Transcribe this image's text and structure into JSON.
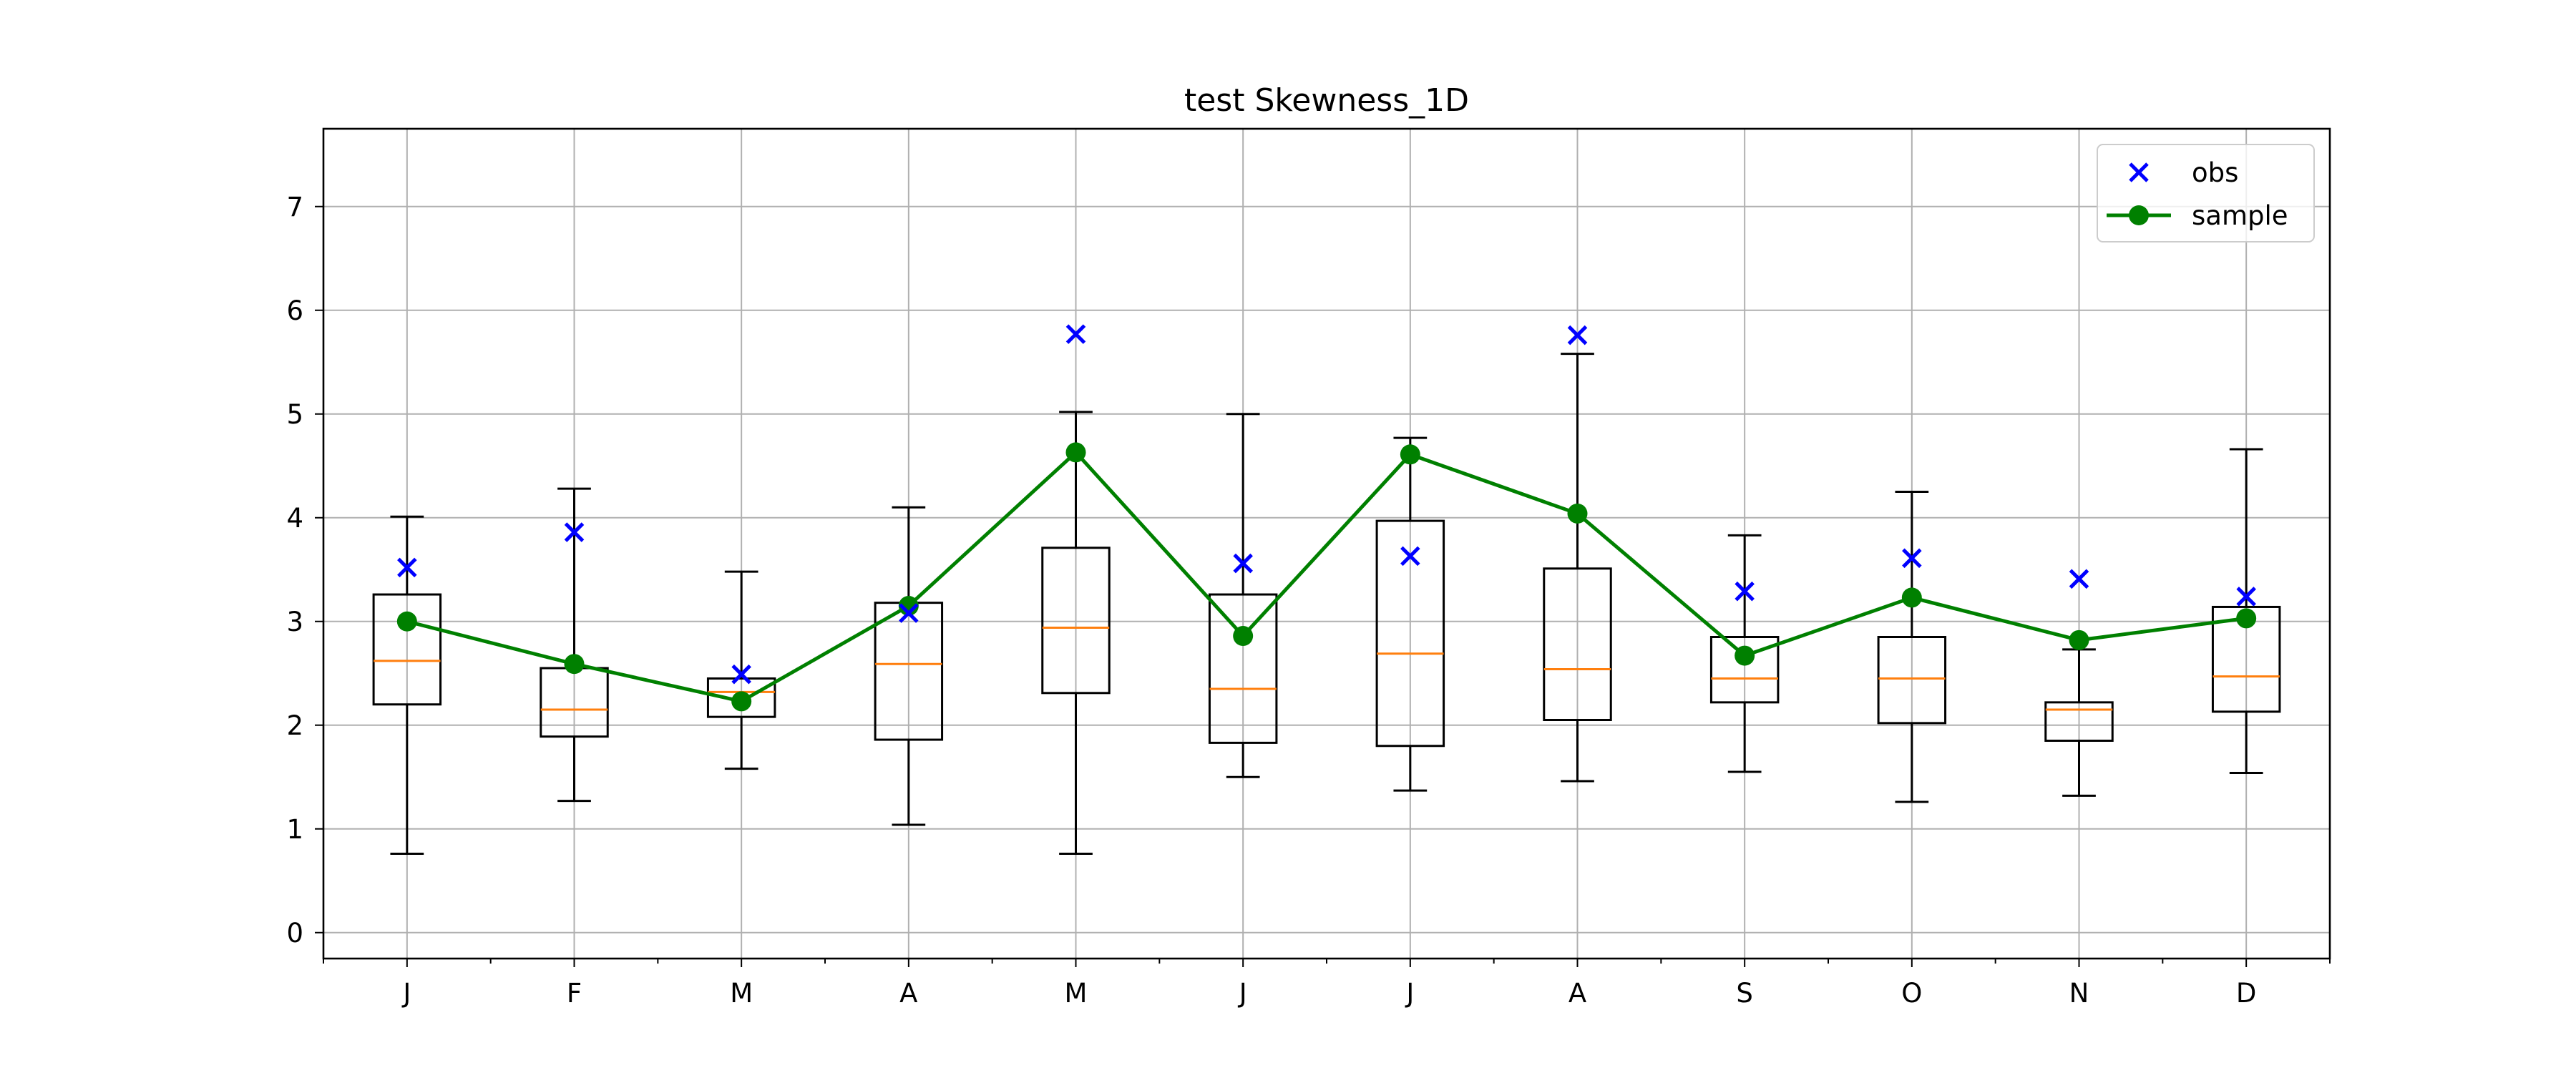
{
  "chart_data": {
    "type": "box",
    "title": "test Skewness_1D",
    "xlabel": "",
    "ylabel": "",
    "categories": [
      "J",
      "F",
      "M",
      "A",
      "M",
      "J",
      "J",
      "A",
      "S",
      "O",
      "N",
      "D"
    ],
    "ylim": [
      -0.25,
      7.75
    ],
    "yticks": [
      0,
      1,
      2,
      3,
      4,
      5,
      6,
      7
    ],
    "grid": true,
    "legend": {
      "placement": "top-right",
      "entries": [
        "obs",
        "sample"
      ]
    },
    "colors": {
      "box": "#000000",
      "median": "#ff7f0e",
      "obs": "#0000ff",
      "sample": "#008000",
      "grid": "#b0b0b0"
    },
    "boxes": [
      {
        "whislo": 0.76,
        "q1": 2.2,
        "med": 2.62,
        "q3": 3.26,
        "whishi": 4.01
      },
      {
        "whislo": 1.27,
        "q1": 1.89,
        "med": 2.15,
        "q3": 2.55,
        "whishi": 4.28
      },
      {
        "whislo": 1.58,
        "q1": 2.08,
        "med": 2.32,
        "q3": 2.45,
        "whishi": 3.48
      },
      {
        "whislo": 1.04,
        "q1": 1.86,
        "med": 2.59,
        "q3": 3.18,
        "whishi": 4.1
      },
      {
        "whislo": 0.76,
        "q1": 2.31,
        "med": 2.94,
        "q3": 3.71,
        "whishi": 5.02
      },
      {
        "whislo": 1.5,
        "q1": 1.83,
        "med": 2.35,
        "q3": 3.26,
        "whishi": 5.0
      },
      {
        "whislo": 1.37,
        "q1": 1.8,
        "med": 2.69,
        "q3": 3.97,
        "whishi": 4.77
      },
      {
        "whislo": 1.46,
        "q1": 2.05,
        "med": 2.54,
        "q3": 3.51,
        "whishi": 5.58
      },
      {
        "whislo": 1.55,
        "q1": 2.22,
        "med": 2.45,
        "q3": 2.85,
        "whishi": 3.83
      },
      {
        "whislo": 1.26,
        "q1": 2.02,
        "med": 2.45,
        "q3": 2.85,
        "whishi": 4.25
      },
      {
        "whislo": 1.32,
        "q1": 1.85,
        "med": 2.15,
        "q3": 2.22,
        "whishi": 2.73
      },
      {
        "whislo": 1.54,
        "q1": 2.13,
        "med": 2.47,
        "q3": 3.14,
        "whishi": 4.66
      }
    ],
    "series": [
      {
        "name": "obs",
        "values": [
          3.52,
          3.86,
          2.49,
          3.08,
          5.77,
          3.56,
          3.63,
          5.76,
          3.29,
          3.61,
          3.41,
          3.24
        ]
      },
      {
        "name": "sample",
        "values": [
          3.0,
          2.59,
          2.23,
          3.15,
          4.63,
          2.86,
          4.61,
          4.04,
          2.67,
          3.23,
          2.82,
          3.03
        ]
      }
    ]
  }
}
